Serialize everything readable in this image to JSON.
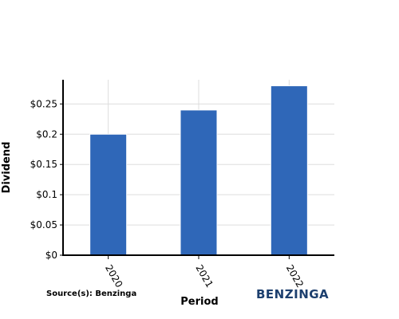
{
  "chart_data": {
    "type": "bar",
    "categories": [
      "2020",
      "2021",
      "2022"
    ],
    "values": [
      0.2,
      0.24,
      0.28
    ],
    "xlabel": "Period",
    "ylabel": "Dividend",
    "ylim": [
      0,
      0.29
    ],
    "yticks": [
      0,
      0.05,
      0.1,
      0.15,
      0.2,
      0.25
    ],
    "ytick_labels": [
      "$0",
      "$0.05",
      "$0.1",
      "$0.15",
      "$0.2",
      "$0.25"
    ],
    "grid": true,
    "bar_color": "#2f67b8"
  },
  "source_text": "Source(s): Benzinga",
  "logo_text": "BENZINGA",
  "logo_color": "#1c3f6e"
}
